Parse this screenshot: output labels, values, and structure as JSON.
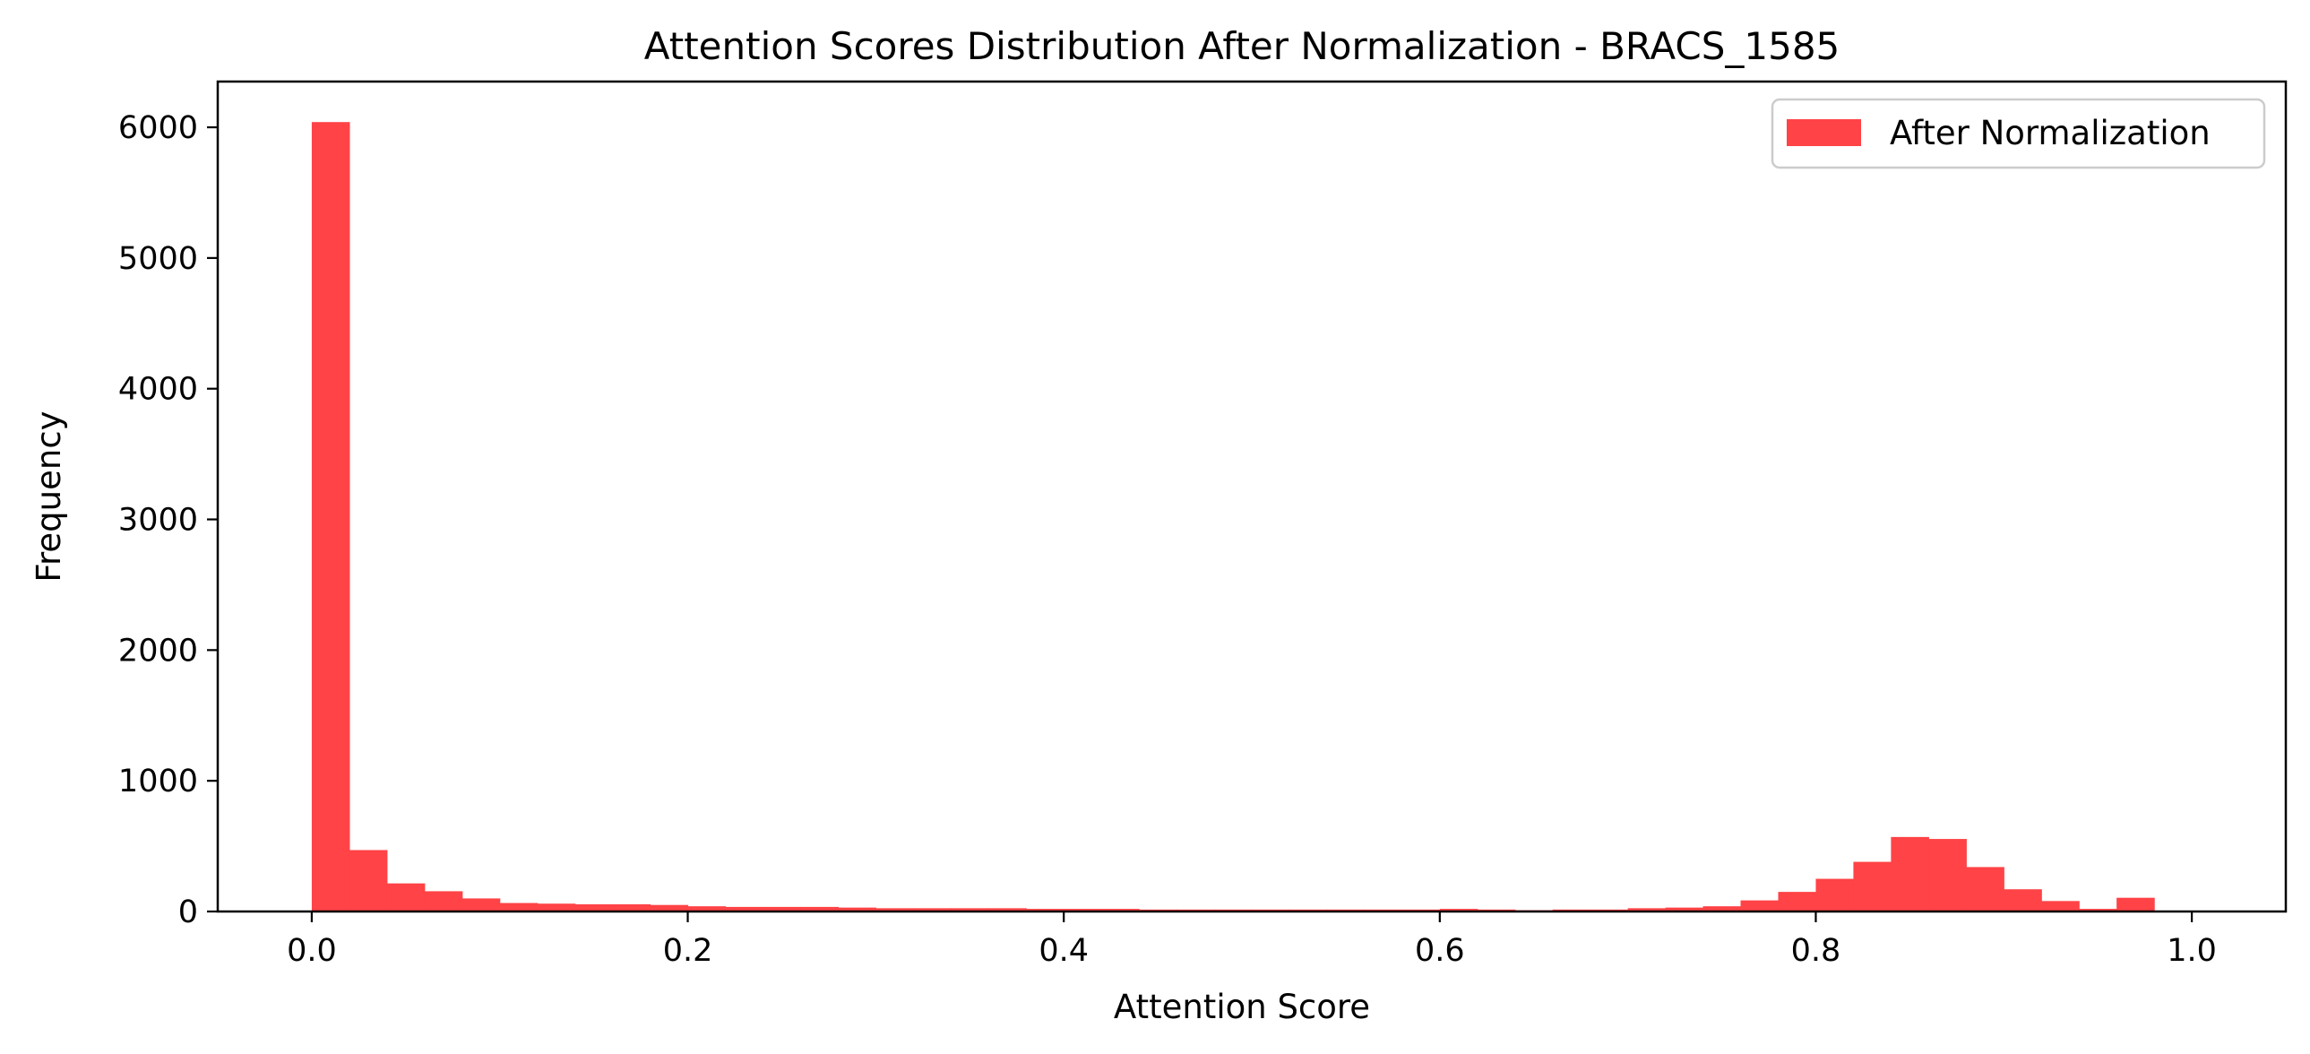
{
  "chart_data": {
    "type": "bar",
    "title": "Attention Scores Distribution After Normalization - BRACS_1585",
    "xlabel": "Attention Score",
    "ylabel": "Frequency",
    "xlim": [
      -0.05,
      1.05
    ],
    "ylim": [
      0,
      6350
    ],
    "xticks": [
      0.0,
      0.2,
      0.4,
      0.6,
      0.8,
      1.0
    ],
    "xtick_labels": [
      "0.0",
      "0.2",
      "0.4",
      "0.6",
      "0.8",
      "1.0"
    ],
    "yticks": [
      0,
      1000,
      2000,
      3000,
      4000,
      5000,
      6000
    ],
    "ytick_labels": [
      "0",
      "1000",
      "2000",
      "3000",
      "4000",
      "5000",
      "6000"
    ],
    "grid": false,
    "legend": {
      "position": "top-right",
      "entries": [
        "After Normalization"
      ]
    },
    "colors": {
      "bar": "#ff4346",
      "axes": "#000000",
      "background": "#ffffff"
    },
    "series": [
      {
        "name": "After Normalization",
        "bin_start": 0.0,
        "bin_width": 0.02,
        "values": [
          6040,
          470,
          215,
          155,
          100,
          65,
          60,
          55,
          55,
          50,
          40,
          35,
          35,
          35,
          30,
          25,
          25,
          25,
          25,
          20,
          20,
          20,
          15,
          15,
          15,
          15,
          15,
          15,
          15,
          15,
          20,
          15,
          10,
          15,
          15,
          25,
          30,
          40,
          85,
          150,
          250,
          380,
          570,
          555,
          340,
          170,
          80,
          20,
          105
        ]
      }
    ]
  }
}
